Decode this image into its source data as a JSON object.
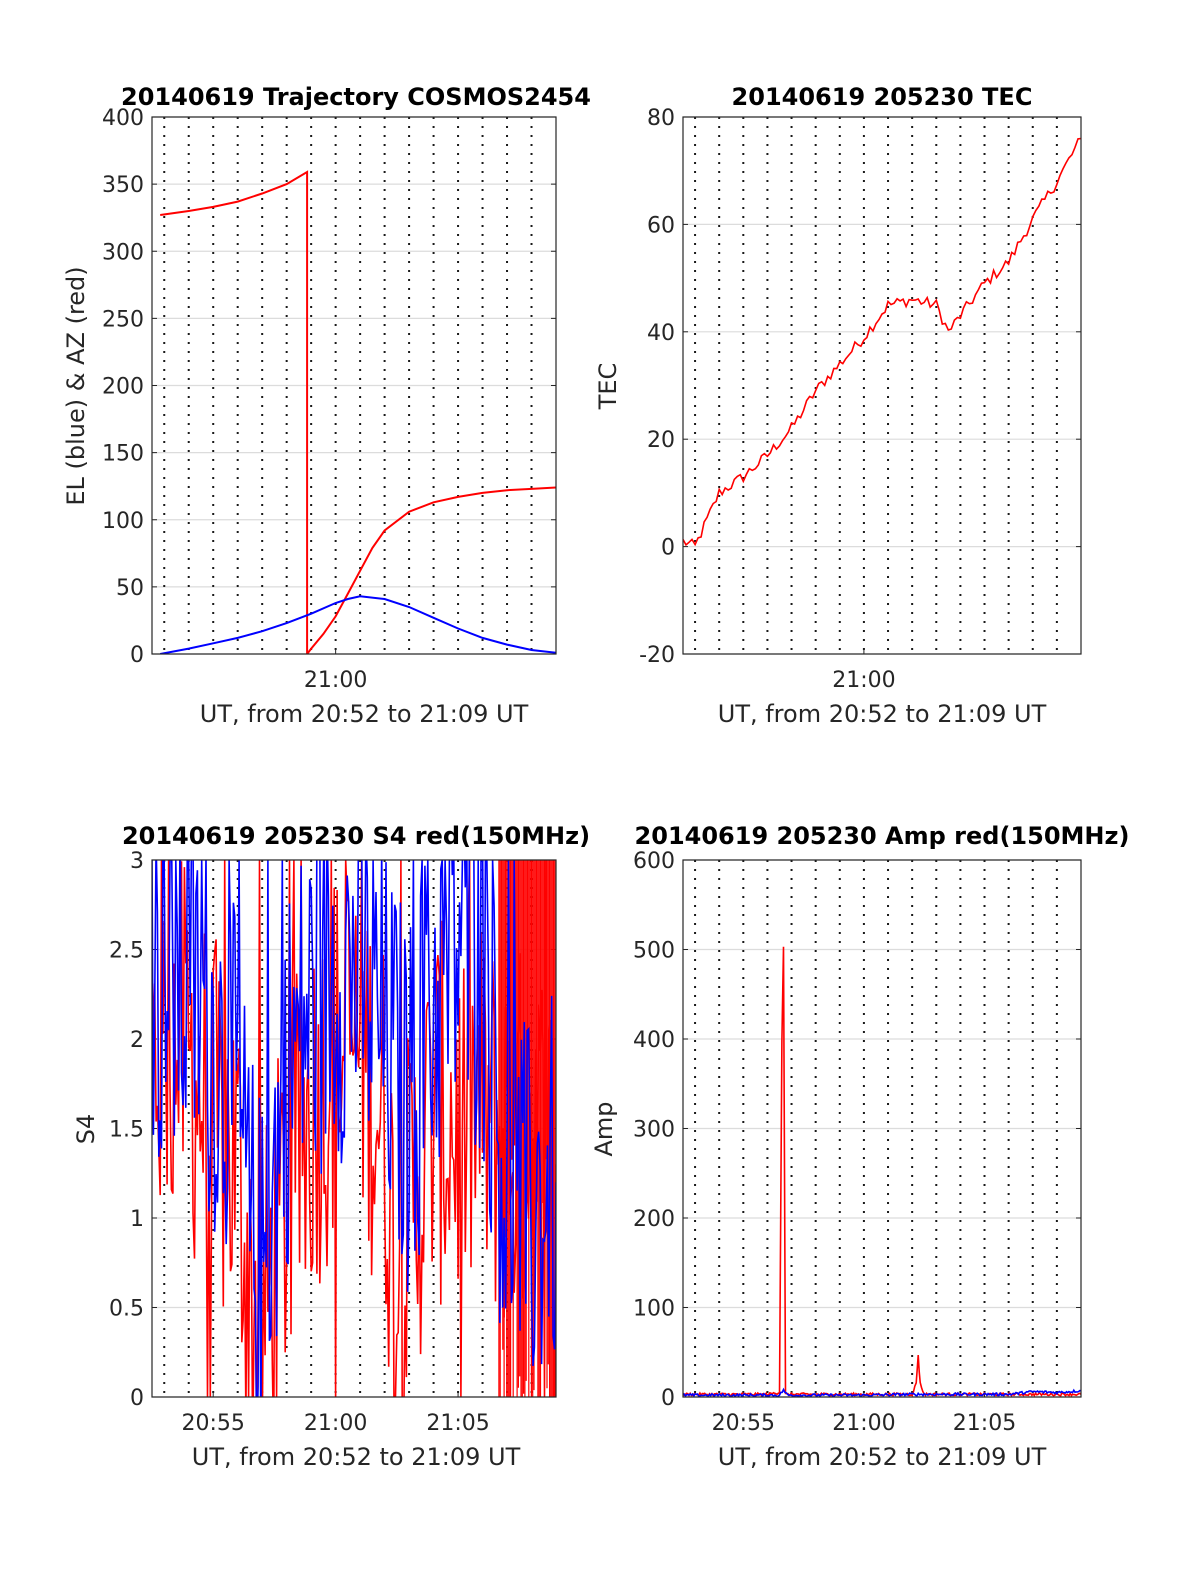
{
  "colors": {
    "red": "#ff0000",
    "blue": "#0000ff",
    "grid": "#dcdcdc",
    "axis": "#262626"
  },
  "chart_data": [
    {
      "id": "trajectory",
      "type": "line",
      "title": "20140619 Trajectory COSMOS2454",
      "xlabel": "UT, from 20:52 to 21:09 UT",
      "ylabel": "EL (blue) & AZ (red)",
      "xlim": [
        "20:52:30",
        "21:09:00"
      ],
      "ylim": [
        0,
        400
      ],
      "yticks": [
        "0",
        "50",
        "100",
        "150",
        "200",
        "250",
        "300",
        "350",
        "400"
      ],
      "xticks": [
        {
          "t": "21:00:00",
          "label": "21:00"
        }
      ],
      "grid": true,
      "series": [
        {
          "color": "red",
          "x": [
            "20:52:50",
            "20:54:00",
            "20:55:00",
            "20:56:00",
            "20:57:00",
            "20:58:00",
            "20:58:50",
            "20:58:50",
            "20:59:00",
            "20:59:30",
            "21:00:00",
            "21:00:30",
            "21:01:00",
            "21:01:30",
            "21:02:00",
            "21:03:00",
            "21:04:00",
            "21:05:00",
            "21:06:00",
            "21:07:00",
            "21:08:00",
            "21:09:00"
          ],
          "y": [
            327,
            330,
            333,
            337,
            343,
            350,
            359,
            0,
            4,
            15,
            28,
            45,
            62,
            79,
            92,
            106,
            113,
            117,
            120,
            122,
            123,
            124
          ]
        },
        {
          "color": "blue",
          "x": [
            "20:52:50",
            "20:54:00",
            "20:55:00",
            "20:56:00",
            "20:57:00",
            "20:58:00",
            "20:59:00",
            "21:00:00",
            "21:00:30",
            "21:01:00",
            "21:02:00",
            "21:03:00",
            "21:04:00",
            "21:05:00",
            "21:06:00",
            "21:07:00",
            "21:08:00",
            "21:09:00"
          ],
          "y": [
            0,
            4,
            8,
            12,
            17,
            23,
            30,
            38,
            41,
            43,
            41,
            35,
            27,
            19,
            12,
            7,
            3,
            1
          ]
        }
      ]
    },
    {
      "id": "tec",
      "type": "line",
      "title": "20140619 205230 TEC",
      "xlabel": "UT, from 20:52 to 21:09 UT",
      "ylabel": "TEC",
      "xlim": [
        "20:52:30",
        "21:09:00"
      ],
      "ylim": [
        -20,
        80
      ],
      "yticks": [
        "-20",
        "0",
        "20",
        "40",
        "60",
        "80"
      ],
      "xticks": [
        {
          "t": "21:00:00",
          "label": "21:00"
        }
      ],
      "grid": true,
      "series": [
        {
          "color": "red",
          "x": [
            "20:52:30",
            "20:53:00",
            "20:53:30",
            "20:54:00",
            "20:55:00",
            "20:56:00",
            "20:57:00",
            "20:58:00",
            "20:59:00",
            "21:00:00",
            "21:01:00",
            "21:02:00",
            "21:03:00",
            "21:03:30",
            "21:04:00",
            "21:05:00",
            "21:06:00",
            "21:07:00",
            "21:08:00",
            "21:09:00"
          ],
          "y": [
            1,
            0,
            5,
            10,
            13,
            17,
            22,
            29,
            34,
            39,
            45,
            46,
            45,
            40,
            43,
            49,
            53,
            61,
            68,
            76
          ]
        }
      ]
    },
    {
      "id": "s4",
      "type": "line",
      "title": "20140619 205230 S4 red(150MHz)",
      "xlabel": "UT, from 20:52 to 21:09 UT",
      "ylabel": "S4",
      "xlim": [
        "20:52:30",
        "21:09:00"
      ],
      "ylim": [
        0,
        3
      ],
      "yticks": [
        "0",
        "0.5",
        "1",
        "1.5",
        "2",
        "2.5",
        "3"
      ],
      "xticks": [
        {
          "t": "20:55:00",
          "label": "20:55"
        },
        {
          "t": "21:00:00",
          "label": "21:00"
        },
        {
          "t": "21:05:00",
          "label": "21:05"
        }
      ],
      "grid": true,
      "series": [
        {
          "color": "red",
          "x": [
            "20:52:30",
            "20:53:00",
            "20:54:00",
            "20:55:00",
            "20:56:00",
            "20:56:30",
            "20:57:00",
            "20:58:00",
            "20:59:00",
            "21:00:00",
            "21:01:00",
            "21:02:00",
            "21:02:30",
            "21:03:00",
            "21:04:00",
            "21:05:00",
            "21:06:00",
            "21:07:00",
            "21:08:00",
            "21:09:00"
          ],
          "y": [
            1.9,
            2.0,
            1.9,
            1.5,
            1.3,
            0.6,
            0.35,
            1.1,
            1.6,
            1.9,
            2.0,
            1.5,
            0.6,
            1.0,
            1.6,
            1.5,
            1.6,
            1.4,
            1.5,
            1.3
          ]
        },
        {
          "color": "blue",
          "x": [
            "20:52:30",
            "20:53:00",
            "20:54:00",
            "20:55:00",
            "20:56:00",
            "20:56:30",
            "20:57:00",
            "20:58:00",
            "20:59:00",
            "21:00:00",
            "21:01:00",
            "21:02:00",
            "21:03:00",
            "21:04:00",
            "21:05:00",
            "21:06:00",
            "21:07:00",
            "21:08:00",
            "21:09:00"
          ],
          "y": [
            2.4,
            2.2,
            2.3,
            2.0,
            1.6,
            0.9,
            0.6,
            1.8,
            2.2,
            2.4,
            2.4,
            2.0,
            1.6,
            2.2,
            2.5,
            2.4,
            1.1,
            1.0,
            1.2
          ]
        }
      ]
    },
    {
      "id": "amp",
      "type": "line",
      "title": "20140619 205230 Amp red(150MHz)",
      "xlabel": "UT, from 20:52 to 21:09 UT",
      "ylabel": "Amp",
      "xlim": [
        "20:52:30",
        "21:09:00"
      ],
      "ylim": [
        0,
        600
      ],
      "yticks": [
        "0",
        "100",
        "200",
        "300",
        "400",
        "500",
        "600"
      ],
      "xticks": [
        {
          "t": "20:55:00",
          "label": "20:55"
        },
        {
          "t": "21:00:00",
          "label": "21:00"
        },
        {
          "t": "21:05:00",
          "label": "21:05"
        }
      ],
      "grid": true,
      "series": [
        {
          "color": "red",
          "x": [
            "20:52:30",
            "20:56:00",
            "20:56:30",
            "20:56:36",
            "20:56:40",
            "20:56:45",
            "20:57:00",
            "21:02:00",
            "21:02:10",
            "21:02:15",
            "21:02:20",
            "21:02:30",
            "21:09:00"
          ],
          "y": [
            3,
            3,
            5,
            400,
            505,
            3,
            3,
            3,
            15,
            48,
            15,
            3,
            3
          ]
        },
        {
          "color": "blue",
          "x": [
            "20:52:30",
            "20:56:30",
            "20:56:40",
            "20:56:50",
            "21:00:00",
            "21:02:00",
            "21:06:00",
            "21:07:00",
            "21:08:00",
            "21:09:00"
          ],
          "y": [
            2,
            2,
            8,
            2,
            2,
            3,
            3,
            6,
            5,
            7
          ]
        }
      ]
    }
  ]
}
